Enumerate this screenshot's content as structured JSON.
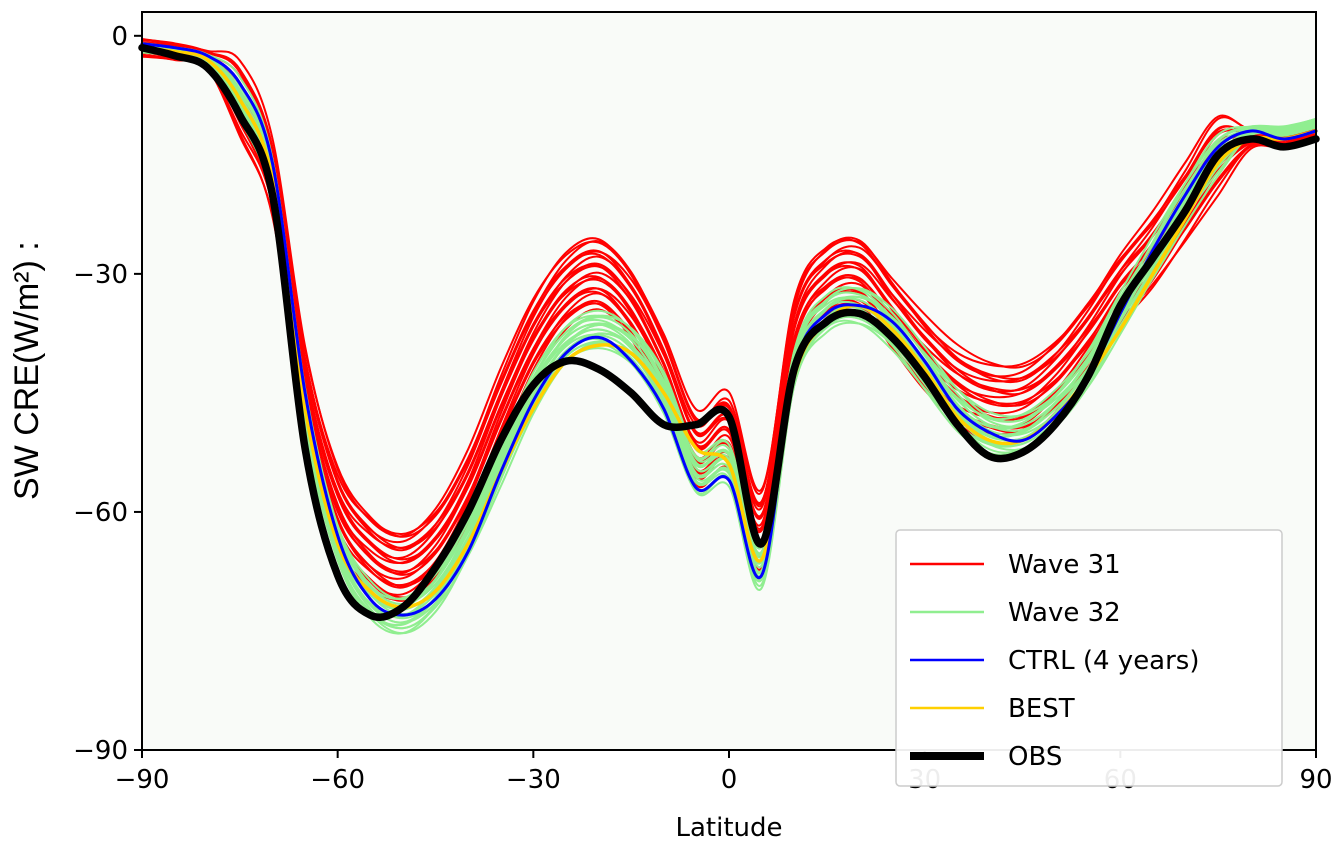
{
  "chart_data": {
    "type": "line",
    "xlabel": "Latitude",
    "ylabel": "SW CRE(W/m²) :",
    "xlim": [
      -90,
      90
    ],
    "ylim": [
      -90,
      3
    ],
    "x_ticks": [
      -90,
      -60,
      -30,
      0,
      30,
      60,
      90
    ],
    "x_tick_labels": [
      "−90",
      "−60",
      "−30",
      "0",
      "30",
      "60",
      "90"
    ],
    "y_ticks": [
      0,
      -30,
      -60,
      -90
    ],
    "y_tick_labels": [
      "0",
      "−30",
      "−60",
      "−90"
    ],
    "legend_position": "lower-right",
    "legend": [
      "Wave 31",
      "Wave 32",
      "CTRL (4 years)",
      "BEST",
      "OBS"
    ],
    "colors": {
      "wave31": "#ff0000",
      "wave32": "#90ee90",
      "ctrl": "#0000ff",
      "best": "#ffd000",
      "obs": "#000000",
      "plot_bg": "#f9fbf8"
    },
    "x": [
      -90,
      -85,
      -80,
      -75,
      -70,
      -65,
      -60,
      -55,
      -50,
      -45,
      -40,
      -35,
      -30,
      -25,
      -20,
      -15,
      -10,
      -5,
      0,
      5,
      10,
      15,
      20,
      25,
      30,
      35,
      40,
      45,
      50,
      55,
      60,
      65,
      70,
      75,
      80,
      85,
      90
    ],
    "series": [
      {
        "name": "OBS",
        "role": "observations",
        "values": [
          -1.5,
          -2.5,
          -4,
          -10,
          -20,
          -52,
          -68,
          -73,
          -72,
          -67,
          -60,
          -51,
          -44,
          -41,
          -42,
          -45,
          -49,
          -49,
          -48,
          -64,
          -42,
          -36,
          -35,
          -38,
          -43,
          -49,
          -53,
          -52.5,
          -49,
          -43,
          -34,
          -28,
          -22,
          -15,
          -13,
          -14,
          -13
        ]
      },
      {
        "name": "BEST",
        "role": "best simulation",
        "values": [
          -1.5,
          -2,
          -3,
          -8,
          -18,
          -47,
          -64,
          -70,
          -72,
          -70,
          -64,
          -55,
          -47,
          -41,
          -39,
          -40,
          -45,
          -52,
          -54,
          -66,
          -43,
          -36,
          -34,
          -37,
          -42,
          -48,
          -51,
          -51,
          -48,
          -43,
          -37,
          -30,
          -23,
          -16,
          -13,
          -13,
          -12
        ]
      },
      {
        "name": "CTRL (4 years)",
        "role": "control run",
        "values": [
          -1,
          -1.5,
          -2.5,
          -6,
          -16,
          -45,
          -63,
          -71,
          -73,
          -71,
          -65,
          -55,
          -46,
          -40,
          -38,
          -41,
          -47,
          -57,
          -56,
          -68,
          -42,
          -35,
          -34,
          -36,
          -41,
          -47,
          -50,
          -51,
          -48,
          -43,
          -35,
          -27,
          -20,
          -14,
          -12,
          -13,
          -12
        ]
      }
    ],
    "ensembles": [
      {
        "name": "Wave 31",
        "members": 22,
        "mean": [
          -1.5,
          -2,
          -3,
          -8,
          -18,
          -44,
          -59,
          -65,
          -67,
          -64,
          -57,
          -47,
          -38,
          -32,
          -30,
          -34,
          -42,
          -52,
          -50,
          -62,
          -38,
          -31,
          -30,
          -35,
          -40,
          -44,
          -46,
          -46,
          -43,
          -38,
          -32,
          -27,
          -21,
          -15,
          -13,
          -13,
          -12
        ],
        "spread": 4.5
      },
      {
        "name": "Wave 32",
        "members": 22,
        "mean": [
          -1.5,
          -2,
          -3,
          -8,
          -18,
          -47,
          -64,
          -71,
          -73,
          -70,
          -63,
          -54,
          -45,
          -39,
          -37,
          -39,
          -45,
          -55,
          -54,
          -67,
          -42,
          -35,
          -34,
          -37,
          -42,
          -47,
          -50,
          -50,
          -47,
          -42,
          -35,
          -28,
          -21,
          -15,
          -12,
          -12,
          -11
        ],
        "spread": 2.2
      }
    ]
  }
}
